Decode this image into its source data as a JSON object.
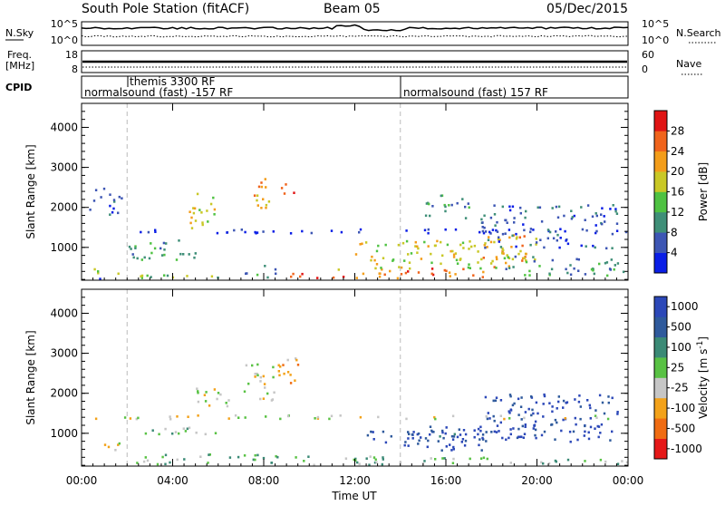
{
  "header": {
    "station": "South Pole Station (fitACF)",
    "beam": "Beam 05",
    "date": "05/Dec/2015"
  },
  "noise_panel": {
    "left_label": "N.Sky",
    "left_ticks": [
      "10^5",
      "10^0"
    ],
    "right_label": "N.Search",
    "right_ticks": [
      "10^5",
      "10^0"
    ]
  },
  "freq_panel": {
    "left_label_1": "Freq.",
    "left_label_2": "[MHz]",
    "left_ticks": [
      "18",
      "8"
    ],
    "right_label": "Nave",
    "right_ticks": [
      "60",
      "0"
    ]
  },
  "cpid_panel": {
    "label": "CPID",
    "programs": [
      {
        "label": "normalsound (fast) -157 RF",
        "start": 0.0
      },
      {
        "label": "themis 3300 RF",
        "start": 2.0
      },
      {
        "label": "normalsound (fast) 157 RF",
        "start": 14.0
      }
    ]
  },
  "chart_data": [
    {
      "type": "heatmap",
      "name": "power",
      "ylabel": "Slant Range [km]",
      "yticks": [
        "1000",
        "2000",
        "3000",
        "4000"
      ],
      "ylim": [
        180,
        4600
      ],
      "xlim": [
        0,
        24
      ],
      "colorbar": {
        "label": "Power [dB]",
        "ticks": [
          "4",
          "8",
          "12",
          "16",
          "20",
          "24",
          "28"
        ],
        "colors": [
          "#0a1ee6",
          "#3d56b4",
          "#3f8f78",
          "#4fc242",
          "#c9c826",
          "#f39d1a",
          "#f0641c",
          "#e01414"
        ]
      }
    },
    {
      "type": "heatmap",
      "name": "velocity",
      "ylabel": "Slant Range [km]",
      "yticks": [
        "1000",
        "2000",
        "3000",
        "4000"
      ],
      "ylim": [
        180,
        4600
      ],
      "xlim": [
        0,
        24
      ],
      "colorbar": {
        "label": "Velocity",
        "unit": "[m s",
        "unit_exp": "-1",
        "unit_close": "]",
        "ticks": [
          "1000",
          "500",
          "100",
          "25",
          "-25",
          "-100",
          "-500",
          "-1000"
        ],
        "colors": [
          "#2c48b8",
          "#2f5a9c",
          "#3b8a76",
          "#59c244",
          "#c6c6c6",
          "#f3a21a",
          "#f06c12",
          "#e51818"
        ]
      }
    }
  ],
  "xaxis": {
    "label": "Time UT",
    "ticks": [
      "00:00",
      "04:00",
      "08:00",
      "12:00",
      "16:00",
      "20:00",
      "00:00"
    ]
  }
}
